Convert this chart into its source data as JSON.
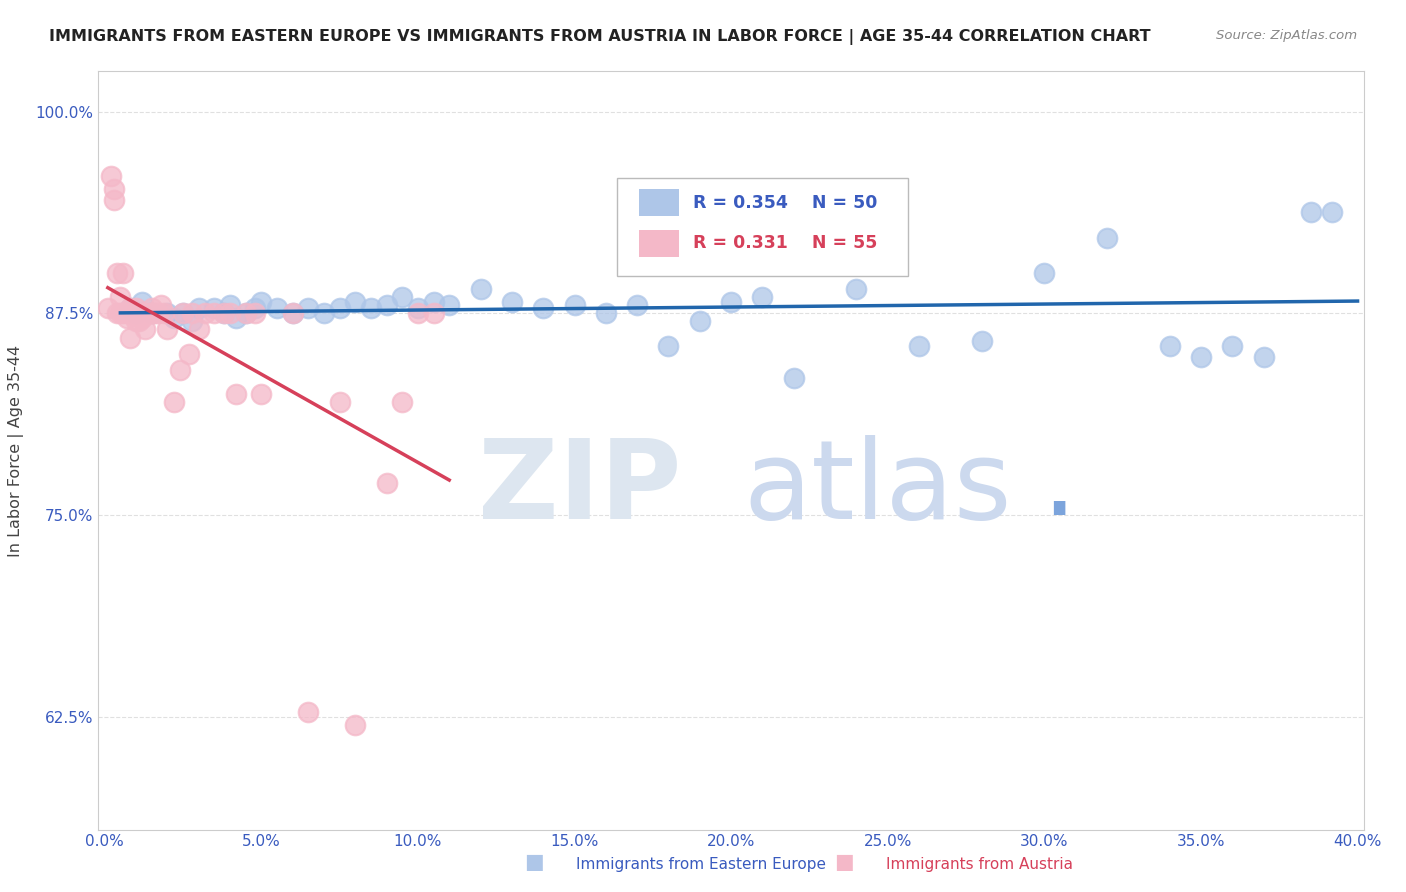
{
  "title": "IMMIGRANTS FROM EASTERN EUROPE VS IMMIGRANTS FROM AUSTRIA IN LABOR FORCE | AGE 35-44 CORRELATION CHART",
  "source": "Source: ZipAtlas.com",
  "xlabel_blue": "Immigrants from Eastern Europe",
  "xlabel_pink": "Immigrants from Austria",
  "ylabel": "In Labor Force | Age 35-44",
  "R_blue": 0.354,
  "N_blue": 50,
  "R_pink": 0.331,
  "N_pink": 55,
  "xlim": [
    -0.002,
    0.402
  ],
  "ylim": [
    0.555,
    1.025
  ],
  "xticks": [
    0.0,
    0.05,
    0.1,
    0.15,
    0.2,
    0.25,
    0.3,
    0.35,
    0.4
  ],
  "yticks": [
    0.625,
    0.75,
    0.875,
    1.0
  ],
  "color_blue": "#aec6e8",
  "color_pink": "#f4b8c8",
  "trendline_blue": "#2166ac",
  "trendline_pink": "#d6405a",
  "background_color": "#ffffff",
  "grid_color": "#dddddd",
  "blue_x": [
    0.008,
    0.01,
    0.012,
    0.015,
    0.02,
    0.022,
    0.025,
    0.028,
    0.03,
    0.035,
    0.038,
    0.04,
    0.042,
    0.045,
    0.048,
    0.05,
    0.055,
    0.06,
    0.065,
    0.07,
    0.075,
    0.08,
    0.085,
    0.09,
    0.095,
    0.1,
    0.105,
    0.11,
    0.12,
    0.13,
    0.14,
    0.15,
    0.16,
    0.17,
    0.18,
    0.19,
    0.2,
    0.21,
    0.22,
    0.24,
    0.26,
    0.28,
    0.3,
    0.32,
    0.34,
    0.35,
    0.36,
    0.37,
    0.385,
    0.392
  ],
  "blue_y": [
    0.878,
    0.875,
    0.882,
    0.875,
    0.875,
    0.872,
    0.875,
    0.87,
    0.878,
    0.878,
    0.875,
    0.88,
    0.872,
    0.875,
    0.878,
    0.882,
    0.878,
    0.875,
    0.878,
    0.875,
    0.878,
    0.882,
    0.878,
    0.88,
    0.885,
    0.878,
    0.882,
    0.88,
    0.89,
    0.882,
    0.878,
    0.88,
    0.875,
    0.88,
    0.855,
    0.87,
    0.882,
    0.885,
    0.835,
    0.89,
    0.855,
    0.858,
    0.9,
    0.922,
    0.855,
    0.848,
    0.855,
    0.848,
    0.938,
    0.938
  ],
  "pink_x": [
    0.001,
    0.002,
    0.003,
    0.003,
    0.004,
    0.004,
    0.005,
    0.005,
    0.006,
    0.006,
    0.007,
    0.007,
    0.008,
    0.008,
    0.009,
    0.009,
    0.01,
    0.01,
    0.01,
    0.011,
    0.011,
    0.012,
    0.012,
    0.013,
    0.013,
    0.014,
    0.015,
    0.015,
    0.016,
    0.017,
    0.018,
    0.019,
    0.02,
    0.022,
    0.024,
    0.025,
    0.027,
    0.028,
    0.03,
    0.032,
    0.035,
    0.038,
    0.04,
    0.042,
    0.045,
    0.048,
    0.05,
    0.06,
    0.065,
    0.075,
    0.08,
    0.09,
    0.095,
    0.1,
    0.105
  ],
  "pink_y": [
    0.878,
    0.96,
    0.952,
    0.945,
    0.9,
    0.875,
    0.885,
    0.875,
    0.9,
    0.875,
    0.875,
    0.872,
    0.878,
    0.86,
    0.875,
    0.875,
    0.87,
    0.878,
    0.875,
    0.875,
    0.87,
    0.872,
    0.875,
    0.875,
    0.865,
    0.875,
    0.878,
    0.875,
    0.875,
    0.875,
    0.88,
    0.875,
    0.865,
    0.82,
    0.84,
    0.875,
    0.85,
    0.875,
    0.865,
    0.875,
    0.875,
    0.875,
    0.875,
    0.825,
    0.875,
    0.875,
    0.825,
    0.875,
    0.628,
    0.82,
    0.62,
    0.77,
    0.82,
    0.875,
    0.875
  ]
}
